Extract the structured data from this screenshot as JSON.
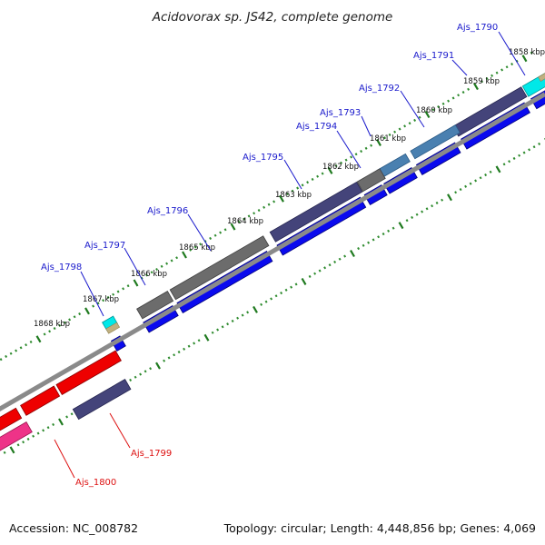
{
  "title": "Acidovorax sp. JS42, complete genome",
  "footer": {
    "accession": "Accession: NC_008782",
    "summary": "Topology: circular; Length: 4,448,856 bp; Genes: 4,069"
  },
  "colors": {
    "backbone": "#8a8a8a",
    "tick_major": "#1f7a1f",
    "tick_minor": "#2e8b2e",
    "label_forward": "#1a1acc",
    "label_reverse": "#dd1111",
    "cds_blue": "#0a0aee",
    "cds_slate": "#44447a",
    "cds_gray": "#6c6c6c",
    "cds_steel": "#4a80b0",
    "cds_red": "#ee0000",
    "cds_pink": "#ee3388",
    "cds_cyan": "#00e8e8",
    "cds_tan": "#c0b080"
  },
  "kbp_labels": [
    "1858 kbp",
    "1859 kbp",
    "1860 kbp",
    "1861 kbp",
    "1862 kbp",
    "1863 kbp",
    "1864 kbp",
    "1865 kbp",
    "1866 kbp",
    "1867 kbp",
    "1868 kbp"
  ],
  "forward_genes": [
    "Ajs_1790",
    "Ajs_1791",
    "Ajs_1792",
    "Ajs_1793",
    "Ajs_1794",
    "Ajs_1795",
    "Ajs_1796",
    "Ajs_1797",
    "Ajs_1798"
  ],
  "reverse_genes": [
    "Ajs_1799",
    "Ajs_1800"
  ]
}
